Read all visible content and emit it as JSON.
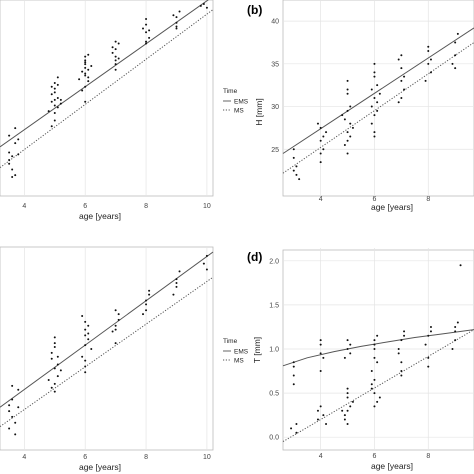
{
  "figure": {
    "panel_labels": [
      "",
      "(b)",
      "",
      "(d)"
    ],
    "legend": {
      "title": "Time",
      "entries": [
        {
          "label": "EMS",
          "linestyle": "solid"
        },
        {
          "label": "MS",
          "linestyle": "dotted"
        }
      ]
    },
    "colors": {
      "points": "#111111",
      "ems_line": "#555555",
      "ms_line": "#555555",
      "grid": "#e4e4e4",
      "panel_border": "#bbbbbb"
    }
  },
  "chart_data": [
    {
      "id": "a",
      "type": "scatter",
      "title": "",
      "xlabel": "age [years]",
      "ylabel": "",
      "xlim": [
        3.2,
        10.2
      ],
      "ylim": [
        0,
        10
      ],
      "xticks": [
        4,
        6,
        8,
        10
      ],
      "yticks": [],
      "grid": true,
      "legend_position": "right",
      "x": [
        3.5,
        3.5,
        3.5,
        3.6,
        3.6,
        3.7,
        3.7,
        3.8,
        3.5,
        3.6,
        3.8,
        3.7,
        4.9,
        4.9,
        5.0,
        5.0,
        5.0,
        5.0,
        5.0,
        5.1,
        5.1,
        5.1,
        5.2,
        4.8,
        4.9,
        5.0,
        5.1,
        5.0,
        4.9,
        5.2,
        6.0,
        6.0,
        6.0,
        6.1,
        6.1,
        5.9,
        6.0,
        6.0,
        6.1,
        5.9,
        6.0,
        6.0,
        6.0,
        6.2,
        5.8,
        6.0,
        6.1,
        7.0,
        7.0,
        7.1,
        7.0,
        6.9,
        7.0,
        7.1,
        7.0,
        6.9,
        7.0,
        8.0,
        8.0,
        8.1,
        8.0,
        7.9,
        8.0,
        8.0,
        8.1,
        9.0,
        9.0,
        9.1,
        9.0,
        8.9,
        9.0,
        9.9,
        10.0,
        10.0,
        9.8
      ],
      "y": [
        1.7,
        2.1,
        3.0,
        1.2,
        0.8,
        2.6,
        3.4,
        2.0,
        1.5,
        1.9,
        2.8,
        0.9,
        4.8,
        5.2,
        5.5,
        4.9,
        4.2,
        3.8,
        5.8,
        5.0,
        4.5,
        6.1,
        4.7,
        4.3,
        3.5,
        5.3,
        5.7,
        4.6,
        5.6,
        4.9,
        6.2,
        6.8,
        7.0,
        6.5,
        5.9,
        6.4,
        5.6,
        6.6,
        7.3,
        5.4,
        7.2,
        6.3,
        4.8,
        6.7,
        6.0,
        6.9,
        6.1,
        7.6,
        7.2,
        7.9,
        6.8,
        7.4,
        8.0,
        7.1,
        6.5,
        7.7,
        7.0,
        8.5,
        8.9,
        8.2,
        7.9,
        8.7,
        9.2,
        8.0,
        8.6,
        9.3,
        9.0,
        9.6,
        8.8,
        9.4,
        8.7,
        10.0,
        9.8,
        10.3,
        9.9
      ],
      "series": [
        {
          "name": "EMS",
          "linestyle": "solid",
          "x": [
            3.2,
            10.2
          ],
          "y": [
            2.4,
            10.4
          ]
        },
        {
          "name": "MS",
          "linestyle": "dotted",
          "x": [
            3.2,
            10.2
          ],
          "y": [
            1.3,
            9.7
          ]
        }
      ]
    },
    {
      "id": "b",
      "type": "scatter",
      "title": "",
      "xlabel": "age [years]",
      "ylabel": "H [mm]",
      "xlim": [
        2.6,
        9.7
      ],
      "ylim": [
        20,
        42
      ],
      "xticks": [
        4,
        6,
        8
      ],
      "yticks": [
        25,
        30,
        35,
        40
      ],
      "grid": true,
      "legend_position": "",
      "x": [
        3.0,
        3.0,
        3.1,
        3.2,
        3.0,
        3.1,
        4.0,
        4.0,
        4.1,
        4.0,
        3.9,
        4.1,
        4.0,
        4.2,
        4.9,
        5.0,
        5.0,
        5.0,
        5.1,
        5.0,
        4.9,
        5.1,
        5.0,
        5.2,
        5.0,
        4.8,
        5.0,
        5.1,
        5.9,
        6.0,
        6.0,
        6.1,
        6.0,
        5.9,
        6.0,
        6.1,
        6.0,
        6.2,
        6.0,
        5.9,
        6.1,
        6.0,
        7.0,
        7.0,
        7.1,
        6.9,
        7.0,
        7.1,
        7.0,
        6.9,
        8.0,
        8.0,
        8.1,
        7.9,
        8.0,
        8.1,
        9.0,
        9.0,
        9.1,
        8.9,
        9.0
      ],
      "y": [
        22.5,
        24.0,
        23.0,
        21.5,
        25.0,
        22.0,
        26.0,
        27.5,
        25.0,
        24.5,
        28.0,
        26.5,
        23.5,
        27.0,
        28.5,
        27.0,
        29.5,
        26.0,
        30.0,
        31.5,
        25.5,
        28.0,
        32.0,
        27.5,
        24.5,
        29.0,
        33.0,
        26.5,
        30.0,
        31.0,
        29.0,
        32.5,
        33.5,
        28.0,
        27.0,
        30.5,
        34.0,
        31.5,
        26.5,
        32.0,
        29.5,
        35.0,
        33.0,
        34.5,
        32.0,
        35.5,
        31.0,
        33.5,
        36.0,
        30.5,
        35.0,
        36.5,
        34.0,
        33.0,
        37.0,
        35.5,
        37.5,
        36.0,
        38.5,
        35.0,
        34.5
      ],
      "series": [
        {
          "name": "EMS",
          "linestyle": "solid",
          "x": [
            2.6,
            9.7
          ],
          "y": [
            24.5,
            39.2
          ]
        },
        {
          "name": "MS",
          "linestyle": "dotted",
          "x": [
            2.6,
            9.7
          ],
          "y": [
            22.2,
            37.5
          ]
        }
      ]
    },
    {
      "id": "c",
      "type": "scatter",
      "title": "",
      "xlabel": "age [years]",
      "ylabel": "",
      "xlim": [
        3.2,
        10.2
      ],
      "ylim": [
        0,
        10
      ],
      "xticks": [
        4,
        6,
        8,
        10
      ],
      "yticks": [],
      "grid": true,
      "legend_position": "right",
      "x": [
        3.5,
        3.6,
        3.5,
        3.7,
        3.8,
        3.6,
        3.5,
        3.7,
        3.8,
        3.6,
        4.9,
        5.0,
        5.0,
        5.1,
        5.0,
        4.9,
        5.0,
        5.1,
        5.2,
        4.8,
        5.0,
        5.0,
        5.1,
        4.9,
        6.0,
        6.0,
        6.1,
        5.9,
        6.0,
        6.0,
        6.1,
        6.0,
        5.9,
        6.2,
        6.0,
        6.1,
        6.0,
        7.0,
        7.1,
        6.9,
        7.0,
        7.0,
        7.1,
        7.0,
        8.0,
        8.0,
        8.1,
        7.9,
        8.0,
        8.1,
        9.0,
        9.0,
        9.1,
        8.9,
        9.0,
        9.9,
        10.0,
        10.0
      ],
      "y": [
        1.8,
        2.4,
        0.9,
        1.2,
        2.9,
        1.5,
        2.1,
        0.6,
        2.0,
        3.1,
        4.5,
        4.0,
        5.1,
        3.6,
        3.2,
        4.8,
        5.6,
        4.2,
        3.9,
        3.4,
        2.8,
        5.3,
        4.6,
        3.0,
        5.2,
        6.0,
        5.5,
        4.6,
        6.4,
        4.1,
        5.8,
        3.8,
        6.7,
        5.0,
        4.4,
        6.2,
        5.7,
        6.2,
        6.8,
        5.9,
        7.0,
        5.3,
        6.5,
        6.0,
        7.5,
        7.0,
        8.0,
        6.8,
        7.3,
        7.8,
        8.6,
        8.2,
        9.0,
        7.8,
        8.4,
        9.4,
        9.8,
        9.1
      ],
      "series": [
        {
          "name": "EMS",
          "linestyle": "solid",
          "x": [
            3.2,
            10.2
          ],
          "y": [
            2.0,
            10.0
          ]
        },
        {
          "name": "MS",
          "linestyle": "dotted",
          "x": [
            3.2,
            10.2
          ],
          "y": [
            1.0,
            8.7
          ]
        }
      ]
    },
    {
      "id": "d",
      "type": "scatter",
      "title": "",
      "xlabel": "age [years]",
      "ylabel": "T [mm]",
      "xlim": [
        2.6,
        9.7
      ],
      "ylim": [
        -0.1,
        2.1
      ],
      "xticks": [
        4,
        6,
        8
      ],
      "yticks": [
        0.0,
        0.5,
        1.0,
        1.5,
        2.0
      ],
      "grid": true,
      "legend_position": "",
      "x": [
        3.0,
        3.0,
        3.1,
        2.9,
        3.0,
        3.1,
        3.0,
        4.0,
        4.0,
        4.1,
        3.9,
        4.0,
        4.1,
        4.0,
        4.2,
        3.9,
        4.0,
        5.0,
        5.0,
        5.1,
        4.9,
        5.0,
        5.0,
        5.1,
        4.9,
        5.0,
        5.2,
        5.0,
        4.8,
        5.0,
        5.1,
        4.9,
        6.0,
        6.0,
        6.1,
        5.9,
        6.0,
        6.0,
        6.1,
        6.0,
        5.9,
        6.2,
        6.0,
        6.1,
        6.0,
        5.9,
        7.0,
        7.0,
        7.1,
        6.9,
        7.0,
        7.1,
        7.0,
        6.9,
        8.0,
        8.0,
        8.1,
        7.9,
        8.0,
        8.1,
        9.0,
        9.0,
        9.1,
        8.9,
        9.0,
        9.2
      ],
      "y": [
        0.7,
        0.6,
        0.15,
        0.1,
        0.85,
        0.05,
        0.8,
        0.95,
        1.05,
        0.25,
        0.2,
        0.35,
        0.9,
        0.75,
        0.15,
        0.3,
        1.1,
        0.3,
        0.45,
        0.35,
        0.25,
        0.5,
        1.0,
        1.05,
        0.9,
        0.15,
        0.4,
        1.1,
        0.3,
        0.55,
        0.95,
        0.2,
        0.5,
        0.65,
        0.4,
        0.75,
        0.9,
        1.05,
        1.15,
        0.35,
        0.55,
        0.45,
        1.0,
        0.85,
        1.1,
        0.6,
        0.7,
        0.85,
        1.2,
        1.0,
        0.75,
        1.15,
        1.1,
        0.95,
        0.9,
        1.15,
        1.25,
        1.05,
        0.8,
        1.2,
        1.1,
        1.2,
        1.3,
        1.0,
        1.25,
        1.95
      ],
      "series": [
        {
          "name": "EMS",
          "linestyle": "solid",
          "x": [
            2.6,
            3.5,
            4.5,
            5.5,
            6.5,
            7.5,
            8.5,
            9.7
          ],
          "y": [
            0.81,
            0.9,
            0.97,
            1.03,
            1.08,
            1.13,
            1.17,
            1.22
          ]
        },
        {
          "name": "MS",
          "linestyle": "dotted",
          "x": [
            2.6,
            9.7
          ],
          "y": [
            -0.05,
            1.22
          ]
        }
      ]
    }
  ]
}
